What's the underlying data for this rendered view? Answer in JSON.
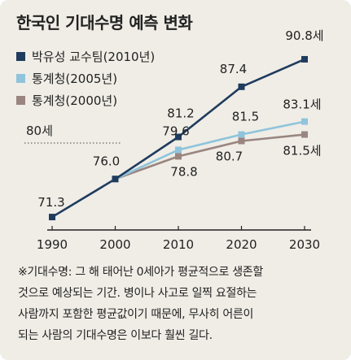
{
  "title": "한국인 기대수명 예측 변화",
  "reference_label": "80세",
  "note_lines": [
    "※기대수명: 그 해 태어난 0세아가 평균적으로 생존할",
    "것으로 예상되는 기간. 병이나 사고로 일찍 요절하는",
    "사람까지 포함한 평균값이기 때문에, 무사히 어른이",
    "되는 사람의 기대수명은 이보다 훨씬 길다."
  ],
  "chart_data": {
    "type": "line",
    "title": "한국인 기대수명 예측 변화",
    "xlabel": "",
    "ylabel": "",
    "x": [
      1990,
      2000,
      2010,
      2020,
      2030
    ],
    "xlim": [
      1990,
      2030
    ],
    "ylim": [
      70,
      92
    ],
    "grid": false,
    "legend_position": "top-left",
    "reference_line": {
      "value": 80,
      "label": "80세",
      "style": "dotted"
    },
    "series": [
      {
        "name": "박유성 교수팀(2010년)",
        "color": "#1f3b5e",
        "points": [
          [
            1990,
            71.3
          ],
          [
            2000,
            76.0
          ],
          [
            2010,
            81.2
          ],
          [
            2020,
            87.4
          ],
          [
            2030,
            90.8
          ]
        ],
        "labels": [
          "71.3",
          "76.0",
          "81.2",
          "87.4",
          "90.8세"
        ]
      },
      {
        "name": "통계청(2005년)",
        "color": "#8fc4dc",
        "points": [
          [
            2000,
            76.0
          ],
          [
            2010,
            79.6
          ],
          [
            2020,
            81.5
          ],
          [
            2030,
            83.1
          ]
        ],
        "labels": [
          "",
          "79.6",
          "81.5",
          "83.1세"
        ]
      },
      {
        "name": "통계청(2000년)",
        "color": "#9a8580",
        "points": [
          [
            2000,
            76.0
          ],
          [
            2010,
            78.8
          ],
          [
            2020,
            80.7
          ],
          [
            2030,
            81.5
          ]
        ],
        "labels": [
          "",
          "78.8",
          "80.7",
          "81.5세"
        ]
      }
    ]
  }
}
